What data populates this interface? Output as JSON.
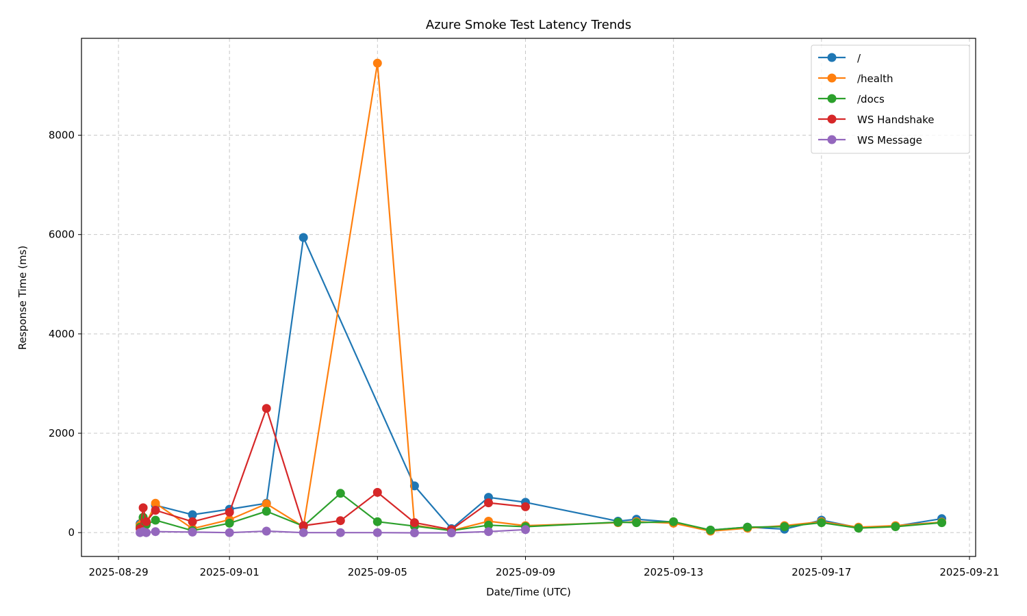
{
  "chart_data": {
    "type": "line",
    "title": "Azure Smoke Test Latency Trends",
    "xlabel": "Date/Time (UTC)",
    "ylabel": "Response Time (ms)",
    "x_type": "datetime",
    "xlim": [
      "2025-08-28T00:00",
      "2025-09-21T04:00"
    ],
    "ylim": [
      -480,
      9950
    ],
    "x_ticks": [
      "2025-08-29",
      "2025-09-01",
      "2025-09-05",
      "2025-09-09",
      "2025-09-13",
      "2025-09-17",
      "2025-09-21"
    ],
    "y_ticks": [
      0,
      2000,
      4000,
      6000,
      8000
    ],
    "grid": true,
    "legend_position": "top-right",
    "series": [
      {
        "name": "/",
        "color": "#1f77b4",
        "points": [
          [
            "2025-08-29T14:00",
            180
          ],
          [
            "2025-08-29T16:00",
            300
          ],
          [
            "2025-08-29T18:00",
            200
          ],
          [
            "2025-08-30T00:00",
            550
          ],
          [
            "2025-08-31T00:00",
            360
          ],
          [
            "2025-09-01T00:00",
            470
          ],
          [
            "2025-09-02T00:00",
            590
          ],
          [
            "2025-09-03T00:00",
            5940
          ],
          [
            "2025-09-06T00:00",
            940
          ],
          [
            "2025-09-07T00:00",
            80
          ],
          [
            "2025-09-08T00:00",
            710
          ],
          [
            "2025-09-09T00:00",
            610
          ],
          [
            "2025-09-11T12:00",
            230
          ],
          [
            "2025-09-12T00:00",
            270
          ],
          [
            "2025-09-13T00:00",
            210
          ],
          [
            "2025-09-14T00:00",
            50
          ],
          [
            "2025-09-15T00:00",
            110
          ],
          [
            "2025-09-16T00:00",
            70
          ],
          [
            "2025-09-17T00:00",
            250
          ],
          [
            "2025-09-18T00:00",
            100
          ],
          [
            "2025-09-19T00:00",
            130
          ],
          [
            "2025-09-20T06:00",
            280
          ]
        ]
      },
      {
        "name": "/health",
        "color": "#ff7f0e",
        "points": [
          [
            "2025-08-29T14:00",
            150
          ],
          [
            "2025-08-29T16:00",
            260
          ],
          [
            "2025-08-29T18:00",
            180
          ],
          [
            "2025-08-30T00:00",
            590
          ],
          [
            "2025-08-31T00:00",
            80
          ],
          [
            "2025-09-01T00:00",
            260
          ],
          [
            "2025-09-02T00:00",
            580
          ],
          [
            "2025-09-03T00:00",
            120
          ],
          [
            "2025-09-05T00:00",
            9450
          ],
          [
            "2025-09-06T00:00",
            150
          ],
          [
            "2025-09-07T00:00",
            40
          ],
          [
            "2025-09-08T00:00",
            230
          ],
          [
            "2025-09-09T00:00",
            140
          ],
          [
            "2025-09-11T12:00",
            200
          ],
          [
            "2025-09-12T00:00",
            220
          ],
          [
            "2025-09-13T00:00",
            190
          ],
          [
            "2025-09-14T00:00",
            30
          ],
          [
            "2025-09-15T00:00",
            90
          ],
          [
            "2025-09-16T00:00",
            140
          ],
          [
            "2025-09-17T00:00",
            220
          ],
          [
            "2025-09-18T00:00",
            110
          ],
          [
            "2025-09-19T00:00",
            140
          ],
          [
            "2025-09-20T06:00",
            210
          ]
        ]
      },
      {
        "name": "/docs",
        "color": "#2ca02c",
        "points": [
          [
            "2025-08-29T14:00",
            110
          ],
          [
            "2025-08-29T16:00",
            310
          ],
          [
            "2025-08-29T18:00",
            160
          ],
          [
            "2025-08-30T00:00",
            250
          ],
          [
            "2025-08-31T00:00",
            40
          ],
          [
            "2025-09-01T00:00",
            190
          ],
          [
            "2025-09-02T00:00",
            430
          ],
          [
            "2025-09-03T00:00",
            130
          ],
          [
            "2025-09-04T00:00",
            790
          ],
          [
            "2025-09-05T00:00",
            220
          ],
          [
            "2025-09-06T00:00",
            130
          ],
          [
            "2025-09-07T00:00",
            40
          ],
          [
            "2025-09-08T00:00",
            150
          ],
          [
            "2025-09-09T00:00",
            120
          ],
          [
            "2025-09-11T12:00",
            210
          ],
          [
            "2025-09-12T00:00",
            200
          ],
          [
            "2025-09-13T00:00",
            220
          ],
          [
            "2025-09-14T00:00",
            50
          ],
          [
            "2025-09-15T00:00",
            110
          ],
          [
            "2025-09-16T00:00",
            120
          ],
          [
            "2025-09-17T00:00",
            200
          ],
          [
            "2025-09-18T00:00",
            90
          ],
          [
            "2025-09-19T00:00",
            120
          ],
          [
            "2025-09-20T06:00",
            200
          ]
        ]
      },
      {
        "name": "WS Handshake",
        "color": "#d62728",
        "points": [
          [
            "2025-08-29T14:00",
            80
          ],
          [
            "2025-08-29T16:00",
            500
          ],
          [
            "2025-08-29T18:00",
            220
          ],
          [
            "2025-08-30T00:00",
            450
          ],
          [
            "2025-08-31T00:00",
            220
          ],
          [
            "2025-09-01T00:00",
            410
          ],
          [
            "2025-09-02T00:00",
            2500
          ],
          [
            "2025-09-03T00:00",
            140
          ],
          [
            "2025-09-04T00:00",
            240
          ],
          [
            "2025-09-05T00:00",
            810
          ],
          [
            "2025-09-06T00:00",
            200
          ],
          [
            "2025-09-07T00:00",
            60
          ],
          [
            "2025-09-08T00:00",
            600
          ],
          [
            "2025-09-09T00:00",
            520
          ]
        ]
      },
      {
        "name": "WS Message",
        "color": "#9467bd",
        "points": [
          [
            "2025-08-29T14:00",
            0
          ],
          [
            "2025-08-29T16:00",
            20
          ],
          [
            "2025-08-29T18:00",
            0
          ],
          [
            "2025-08-30T00:00",
            20
          ],
          [
            "2025-08-31T00:00",
            10
          ],
          [
            "2025-09-01T00:00",
            0
          ],
          [
            "2025-09-02T00:00",
            30
          ],
          [
            "2025-09-03T00:00",
            0
          ],
          [
            "2025-09-04T00:00",
            0
          ],
          [
            "2025-09-05T00:00",
            0
          ],
          [
            "2025-09-06T00:00",
            -5
          ],
          [
            "2025-09-07T00:00",
            -5
          ],
          [
            "2025-09-08T00:00",
            20
          ],
          [
            "2025-09-09T00:00",
            60
          ]
        ]
      }
    ]
  }
}
